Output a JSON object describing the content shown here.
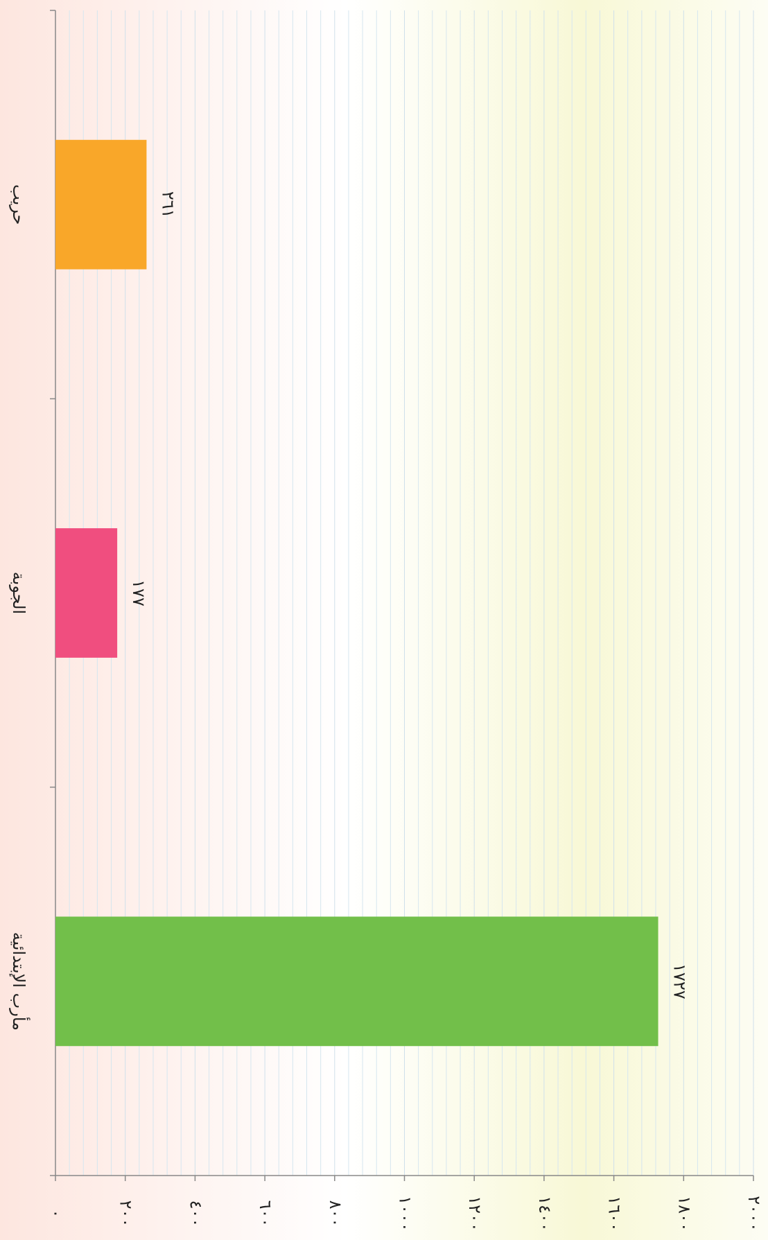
{
  "chart_data": {
    "type": "bar",
    "orientation": "horizontal",
    "categories": [
      "حريب",
      "الجوبة",
      "مأرب الإبتدائية"
    ],
    "values": [
      261,
      177,
      1727
    ],
    "value_labels": [
      "٢٦١",
      "١٧٧",
      "١٧٢٧"
    ],
    "colors": [
      "#f9a729",
      "#f04e7f",
      "#72bf4a"
    ],
    "xlim": [
      0,
      2000
    ],
    "xticks": [
      {
        "value": 0,
        "label": "٠"
      },
      {
        "value": 200,
        "label": "٢٠٠"
      },
      {
        "value": 400,
        "label": "٤٠٠"
      },
      {
        "value": 600,
        "label": "٦٠٠"
      },
      {
        "value": 800,
        "label": "٨٠٠"
      },
      {
        "value": 1000,
        "label": "١٠٠٠"
      },
      {
        "value": 1200,
        "label": "١٢٠٠"
      },
      {
        "value": 1400,
        "label": "١٤٠٠"
      },
      {
        "value": 1600,
        "label": "١٦٠٠"
      },
      {
        "value": 1800,
        "label": "١٨٠٠"
      },
      {
        "value": 2000,
        "label": "٢٠٠٠"
      }
    ],
    "grid": true
  }
}
